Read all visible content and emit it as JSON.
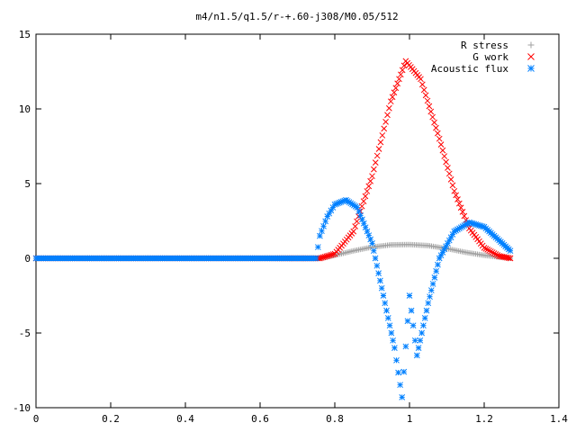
{
  "chart_data": {
    "type": "scatter",
    "title": "m4/n1.5/q1.5/r-+.60-j308/M0.05/512",
    "xlabel": "",
    "ylabel": "",
    "xlim": [
      0,
      1.4
    ],
    "ylim": [
      -10,
      15
    ],
    "x_ticks": [
      "0",
      "0.2",
      "0.4",
      "0.6",
      "0.8",
      "1",
      "1.2",
      "1.4"
    ],
    "y_ticks": [
      "-10",
      "-5",
      "0",
      "5",
      "10",
      "15"
    ],
    "grid": false,
    "legend_position": "top-right",
    "series": [
      {
        "name": "R stress",
        "marker": "plus",
        "color": "#a0a0a0",
        "points": [
          [
            0.0,
            0
          ],
          [
            0.2,
            0
          ],
          [
            0.4,
            0
          ],
          [
            0.6,
            0
          ],
          [
            0.76,
            0
          ],
          [
            0.8,
            0.2
          ],
          [
            0.85,
            0.5
          ],
          [
            0.9,
            0.75
          ],
          [
            0.95,
            0.9
          ],
          [
            1.0,
            0.92
          ],
          [
            1.05,
            0.85
          ],
          [
            1.1,
            0.65
          ],
          [
            1.15,
            0.4
          ],
          [
            1.2,
            0.2
          ],
          [
            1.25,
            0.05
          ],
          [
            1.27,
            0
          ]
        ]
      },
      {
        "name": "G work",
        "marker": "cross",
        "color": "#ff0000",
        "points": [
          [
            0.0,
            0
          ],
          [
            0.2,
            0
          ],
          [
            0.4,
            0
          ],
          [
            0.6,
            0
          ],
          [
            0.76,
            0
          ],
          [
            0.8,
            0.3
          ],
          [
            0.85,
            1.8
          ],
          [
            0.9,
            5.5
          ],
          [
            0.95,
            10.5
          ],
          [
            0.99,
            13.2
          ],
          [
            1.03,
            12.0
          ],
          [
            1.08,
            8.0
          ],
          [
            1.12,
            4.5
          ],
          [
            1.16,
            2.0
          ],
          [
            1.2,
            0.7
          ],
          [
            1.24,
            0.15
          ],
          [
            1.27,
            0
          ]
        ]
      },
      {
        "name": "Acoustic flux",
        "marker": "star",
        "color": "#0080ff",
        "points": [
          [
            0.0,
            0
          ],
          [
            0.2,
            0
          ],
          [
            0.4,
            0
          ],
          [
            0.6,
            0
          ],
          [
            0.75,
            0
          ],
          [
            0.76,
            1.5
          ],
          [
            0.78,
            2.8
          ],
          [
            0.8,
            3.6
          ],
          [
            0.83,
            3.9
          ],
          [
            0.86,
            3.4
          ],
          [
            0.9,
            1.0
          ],
          [
            0.93,
            -2.5
          ],
          [
            0.96,
            -6.0
          ],
          [
            0.98,
            -9.3
          ],
          [
            1.0,
            -2.5
          ],
          [
            1.02,
            -6.5
          ],
          [
            1.05,
            -3.0
          ],
          [
            1.08,
            0.0
          ],
          [
            1.12,
            1.8
          ],
          [
            1.16,
            2.4
          ],
          [
            1.2,
            2.1
          ],
          [
            1.24,
            1.2
          ],
          [
            1.27,
            0.5
          ]
        ]
      }
    ]
  }
}
